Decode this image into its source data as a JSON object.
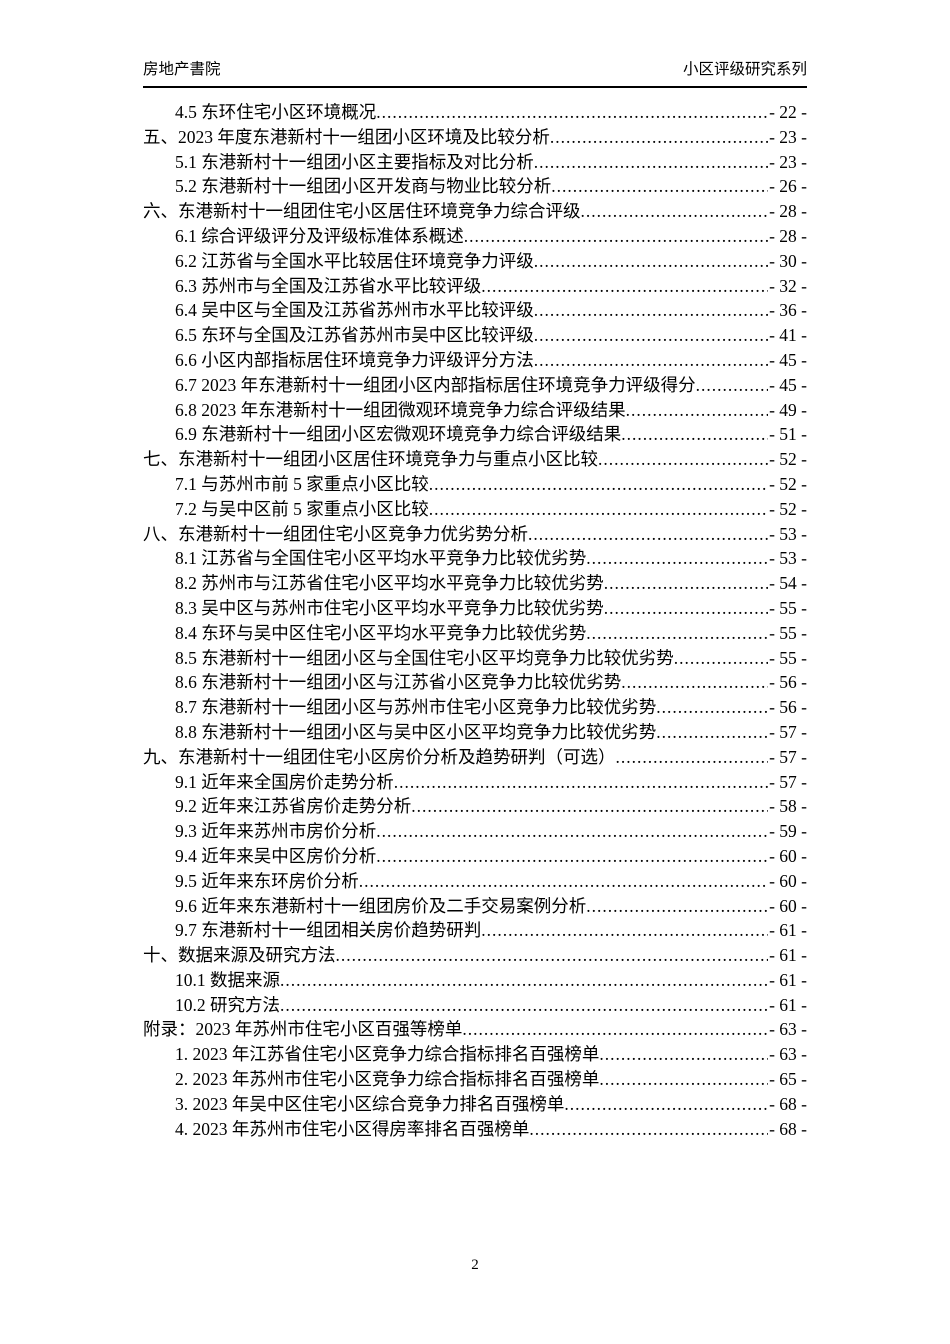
{
  "header": {
    "left": "房地产書院",
    "right": "小区评级研究系列"
  },
  "toc": {
    "entries": [
      {
        "level": "section",
        "label": "4.5 东环住宅小区环境概况",
        "page": "- 22 -"
      },
      {
        "level": "chapter",
        "label": "五、2023 年度东港新村十一组团小区环境及比较分析",
        "page": "- 23 -"
      },
      {
        "level": "section",
        "label": "5.1 东港新村十一组团小区主要指标及对比分析",
        "page": "- 23 -"
      },
      {
        "level": "section",
        "label": "5.2 东港新村十一组团小区开发商与物业比较分析",
        "page": "- 26 -"
      },
      {
        "level": "chapter",
        "label": "六、东港新村十一组团住宅小区居住环境竞争力综合评级",
        "page": "- 28 -"
      },
      {
        "level": "section",
        "label": "6.1 综合评级评分及评级标准体系概述",
        "page": "- 28 -"
      },
      {
        "level": "section",
        "label": "6.2 江苏省与全国水平比较居住环境竞争力评级",
        "page": "- 30 -"
      },
      {
        "level": "section",
        "label": "6.3 苏州市与全国及江苏省水平比较评级",
        "page": "- 32 -"
      },
      {
        "level": "section",
        "label": "6.4 吴中区与全国及江苏省苏州市水平比较评级",
        "page": "- 36 -"
      },
      {
        "level": "section",
        "label": "6.5 东环与全国及江苏省苏州市吴中区比较评级",
        "page": "- 41 -"
      },
      {
        "level": "section",
        "label": "6.6 小区内部指标居住环境竞争力评级评分方法",
        "page": "- 45 -"
      },
      {
        "level": "section",
        "label": "6.7 2023 年东港新村十一组团小区内部指标居住环境竞争力评级得分",
        "page": "- 45 -"
      },
      {
        "level": "section",
        "label": "6.8 2023 年东港新村十一组团微观环境竞争力综合评级结果",
        "page": "- 49 -"
      },
      {
        "level": "section",
        "label": "6.9 东港新村十一组团小区宏微观环境竞争力综合评级结果",
        "page": "- 51 -"
      },
      {
        "level": "chapter",
        "label": "七、东港新村十一组团小区居住环境竞争力与重点小区比较",
        "page": "- 52 -"
      },
      {
        "level": "section",
        "label": "7.1 与苏州市前 5 家重点小区比较",
        "page": "- 52 -"
      },
      {
        "level": "section",
        "label": "7.2 与吴中区前 5 家重点小区比较",
        "page": "- 52 -"
      },
      {
        "level": "chapter",
        "label": "八、东港新村十一组团住宅小区竞争力优劣势分析",
        "page": "- 53 -"
      },
      {
        "level": "section",
        "label": "8.1 江苏省与全国住宅小区平均水平竞争力比较优劣势",
        "page": "- 53 -"
      },
      {
        "level": "section",
        "label": "8.2 苏州市与江苏省住宅小区平均水平竞争力比较优劣势",
        "page": "- 54 -"
      },
      {
        "level": "section",
        "label": "8.3 吴中区与苏州市住宅小区平均水平竞争力比较优劣势",
        "page": "- 55 -"
      },
      {
        "level": "section",
        "label": "8.4 东环与吴中区住宅小区平均水平竞争力比较优劣势",
        "page": "- 55 -"
      },
      {
        "level": "section",
        "label": "8.5 东港新村十一组团小区与全国住宅小区平均竞争力比较优劣势",
        "page": "- 55 -"
      },
      {
        "level": "section",
        "label": "8.6 东港新村十一组团小区与江苏省小区竞争力比较优劣势",
        "page": "- 56 -"
      },
      {
        "level": "section",
        "label": "8.7 东港新村十一组团小区与苏州市住宅小区竞争力比较优劣势",
        "page": "- 56 -"
      },
      {
        "level": "section",
        "label": "8.8 东港新村十一组团小区与吴中区小区平均竞争力比较优劣势",
        "page": "- 57 -"
      },
      {
        "level": "chapter",
        "label": "九、东港新村十一组团住宅小区房价分析及趋势研判（可选） ",
        "page": "- 57 -"
      },
      {
        "level": "section",
        "label": "9.1 近年来全国房价走势分析",
        "page": "- 57 -"
      },
      {
        "level": "section",
        "label": "9.2 近年来江苏省房价走势分析",
        "page": "- 58 -"
      },
      {
        "level": "section",
        "label": "9.3 近年来苏州市房价分析",
        "page": "- 59 -"
      },
      {
        "level": "section",
        "label": "9.4 近年来吴中区房价分析",
        "page": "- 60 -"
      },
      {
        "level": "section",
        "label": "9.5 近年来东环房价分析",
        "page": "- 60 -"
      },
      {
        "level": "section",
        "label": "9.6 近年来东港新村十一组团房价及二手交易案例分析",
        "page": "- 60 -"
      },
      {
        "level": "section",
        "label": "9.7 东港新村十一组团相关房价趋势研判",
        "page": "- 61 -"
      },
      {
        "level": "chapter",
        "label": "十、数据来源及研究方法",
        "page": "- 61 -"
      },
      {
        "level": "section",
        "label": "10.1 数据来源",
        "page": "- 61 -"
      },
      {
        "level": "section",
        "label": "10.2 研究方法",
        "page": "- 61 -"
      },
      {
        "level": "chapter",
        "label": "附录：2023 年苏州市住宅小区百强等榜单",
        "page": "- 63 -"
      },
      {
        "level": "section",
        "label": "1.  2023 年江苏省住宅小区竞争力综合指标排名百强榜单",
        "page": "- 63 -"
      },
      {
        "level": "section",
        "label": "2.  2023 年苏州市住宅小区竞争力综合指标排名百强榜单",
        "page": "- 65 -"
      },
      {
        "level": "section",
        "label": "3.  2023 年吴中区住宅小区综合竞争力排名百强榜单",
        "page": "- 68 -"
      },
      {
        "level": "section",
        "label": "4.  2023 年苏州市住宅小区得房率排名百强榜单",
        "page": "- 68 -"
      }
    ]
  },
  "footer": {
    "page_number": "2"
  }
}
